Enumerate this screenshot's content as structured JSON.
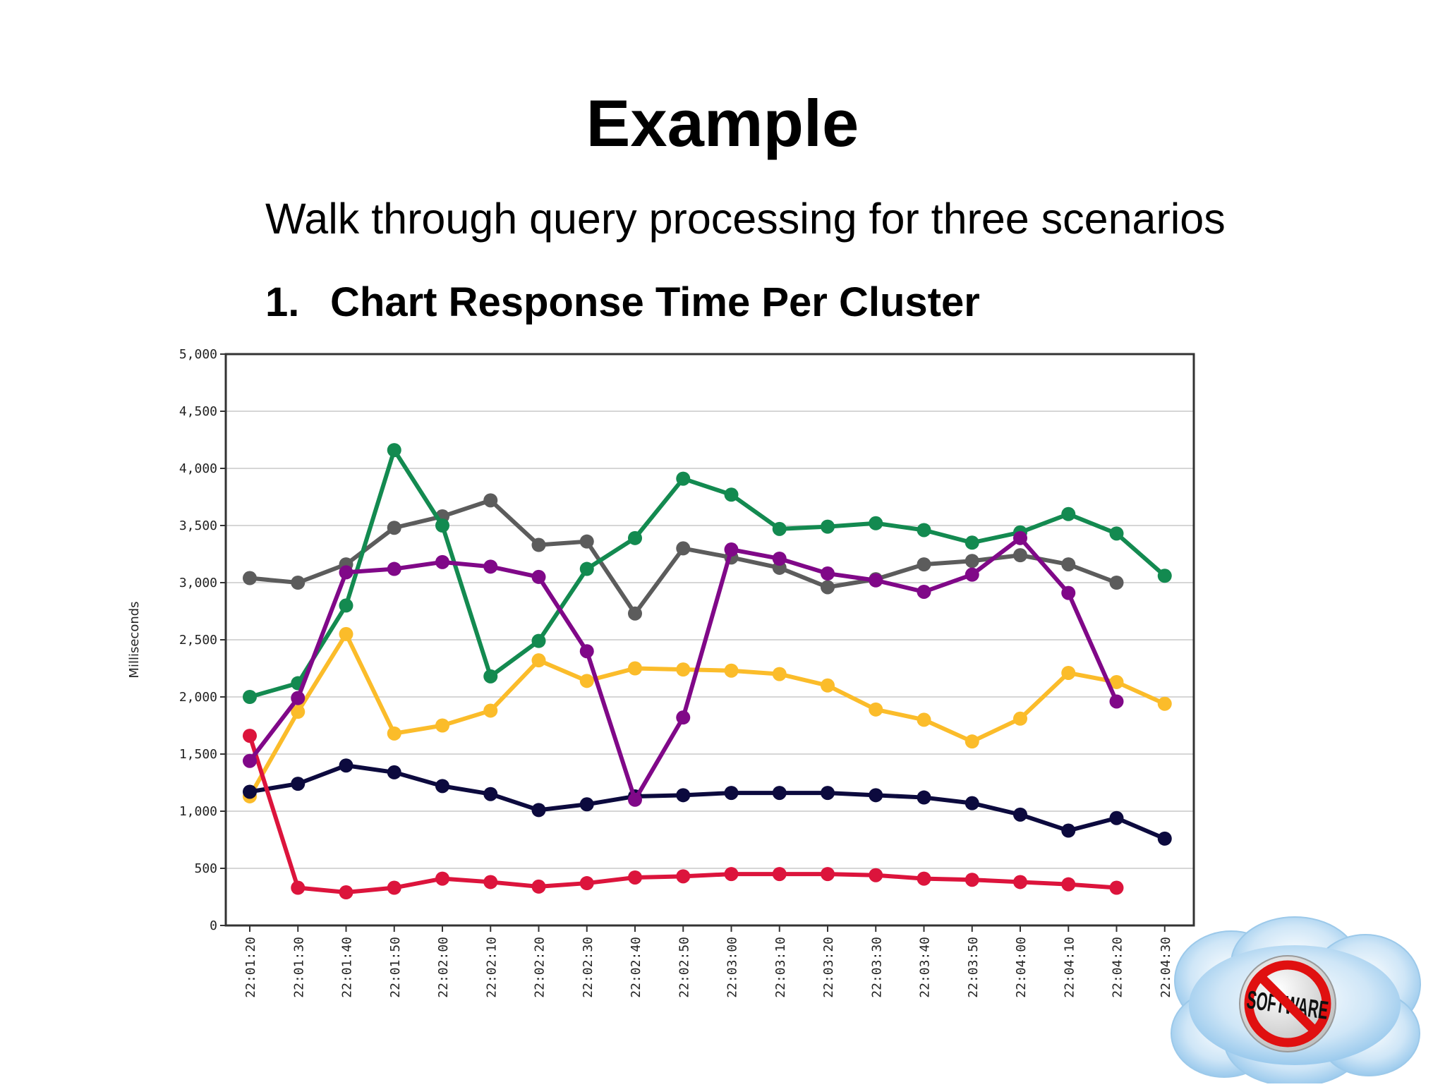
{
  "slide": {
    "title": "Example",
    "subtitle": "Walk through query processing for three scenarios",
    "item_number": "1.",
    "item_text": "Chart Response Time Per Cluster",
    "logo_text": "SOFTWARE"
  },
  "chart_data": {
    "type": "line",
    "title": "",
    "xlabel": "",
    "ylabel": "Milliseconds",
    "ylim": [
      0,
      5000
    ],
    "yticks": [
      0,
      500,
      1000,
      1500,
      2000,
      2500,
      3000,
      3500,
      4000,
      4500,
      5000
    ],
    "ytick_labels": [
      "0",
      "500",
      "1,000",
      "1,500",
      "2,000",
      "2,500",
      "3,000",
      "3,500",
      "4,000",
      "4,500",
      "5,000"
    ],
    "grid": true,
    "legend": "none",
    "categories": [
      "22:01:20",
      "22:01:30",
      "22:01:40",
      "22:01:50",
      "22:02:00",
      "22:02:10",
      "22:02:20",
      "22:02:30",
      "22:02:40",
      "22:02:50",
      "22:03:00",
      "22:03:10",
      "22:03:20",
      "22:03:30",
      "22:03:40",
      "22:03:50",
      "22:04:00",
      "22:04:10",
      "22:04:20",
      "22:04:30"
    ],
    "series": [
      {
        "color": "#5c5c5c",
        "values": [
          3040,
          3000,
          3160,
          3480,
          3580,
          3720,
          3330,
          3360,
          2730,
          3300,
          3220,
          3130,
          2960,
          3030,
          3160,
          3190,
          3240,
          3160,
          3000,
          null
        ]
      },
      {
        "color": "#fbbc2a",
        "values": [
          1130,
          1870,
          2550,
          1680,
          1750,
          1880,
          2320,
          2140,
          2250,
          2240,
          2230,
          2200,
          2100,
          1890,
          1800,
          1610,
          1810,
          2210,
          2130,
          1940
        ]
      },
      {
        "color": "#0c0a3e",
        "values": [
          1170,
          1240,
          1400,
          1340,
          1220,
          1150,
          1010,
          1060,
          1130,
          1140,
          1160,
          1160,
          1160,
          1140,
          1120,
          1070,
          970,
          830,
          940,
          760
        ]
      },
      {
        "color": "#dc143c",
        "values": [
          1660,
          330,
          290,
          330,
          410,
          380,
          340,
          370,
          420,
          430,
          450,
          450,
          450,
          440,
          410,
          400,
          380,
          360,
          330,
          null
        ]
      },
      {
        "color": "#138a50",
        "values": [
          2000,
          2120,
          2800,
          4160,
          3500,
          2180,
          2490,
          3120,
          3390,
          3910,
          3770,
          3470,
          3490,
          3520,
          3460,
          3350,
          3440,
          3600,
          3430,
          3060
        ]
      },
      {
        "color": "#800888",
        "values": [
          1440,
          1990,
          3090,
          3120,
          3180,
          3140,
          3050,
          2400,
          1100,
          1820,
          3290,
          3210,
          3080,
          3020,
          2920,
          3070,
          3390,
          2910,
          1960,
          null
        ]
      }
    ]
  }
}
